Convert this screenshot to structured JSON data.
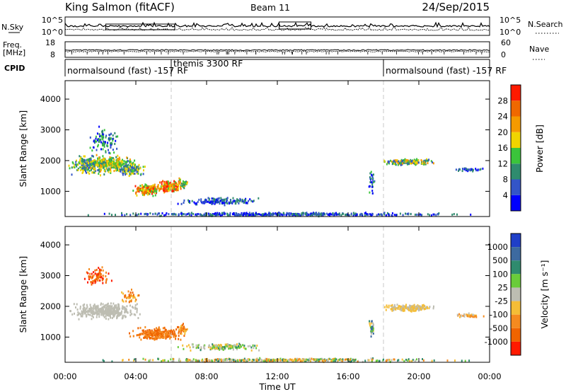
{
  "header": {
    "station": "King Salmon (fitACF)",
    "beam": "Beam 11",
    "date": "24/Sep/2015"
  },
  "chart_data": [
    {
      "type": "line",
      "panel": "noise",
      "left_label": "N.Sky",
      "right_label": "N.Search",
      "left_ticks": [
        "10^5",
        "10^0"
      ],
      "right_ticks": [
        "10^5",
        "10^0"
      ],
      "ylog": true
    },
    {
      "type": "line",
      "panel": "frequency",
      "left_label_lines": [
        "Freq.",
        "[MHz]"
      ],
      "right_label": "Nave",
      "left_ticks": [
        "18",
        "8"
      ],
      "right_ticks": [
        "60",
        "0"
      ]
    },
    {
      "type": "table",
      "panel": "cpid",
      "label": "CPID",
      "segments": [
        {
          "text": "normalsound (fast) -157 RF",
          "start_h": 0,
          "end_h": 6
        },
        {
          "text": "themis 3300 RF",
          "start_h": 6,
          "end_h": 18
        },
        {
          "text": "normalsound (fast) -157 RF",
          "start_h": 18,
          "end_h": 24
        }
      ]
    },
    {
      "type": "heatmap",
      "panel": "power",
      "ylabel": "Slant Range [km]",
      "yticks": [
        1000,
        2000,
        3000,
        4000
      ],
      "ylim": [
        180,
        4600
      ],
      "colorbar_label": "Power [dB]",
      "colorbar_ticks": [
        4,
        8,
        12,
        16,
        20,
        24,
        28
      ],
      "colors": [
        "#0000ff",
        "#3355c8",
        "#2f8b6e",
        "#3bc43b",
        "#f0d400",
        "#f59a00",
        "#ef6800",
        "#ff1a00"
      ],
      "blobs": [
        {
          "t": 1.4,
          "r": 1850,
          "dt": 1.5,
          "dr": 380,
          "n": 260,
          "lvl": [
            1,
            4
          ]
        },
        {
          "t": 2.6,
          "r": 1900,
          "dt": 1.4,
          "dr": 300,
          "n": 240,
          "lvl": [
            2,
            5
          ]
        },
        {
          "t": 3.6,
          "r": 1750,
          "dt": 1.0,
          "dr": 300,
          "n": 160,
          "lvl": [
            1,
            4
          ]
        },
        {
          "t": 2.2,
          "r": 2650,
          "dt": 1.0,
          "dr": 500,
          "n": 110,
          "lvl": [
            0,
            3
          ]
        },
        {
          "t": 4.6,
          "r": 1050,
          "dt": 1.0,
          "dr": 220,
          "n": 170,
          "lvl": [
            3,
            7
          ]
        },
        {
          "t": 5.8,
          "r": 1150,
          "dt": 0.9,
          "dr": 240,
          "n": 150,
          "lvl": [
            3,
            7
          ]
        },
        {
          "t": 6.6,
          "r": 1250,
          "dt": 0.4,
          "dr": 200,
          "n": 40,
          "lvl": [
            2,
            5
          ]
        },
        {
          "t": 8.8,
          "r": 680,
          "dt": 3.0,
          "dr": 140,
          "n": 160,
          "lvl": [
            0,
            2
          ]
        },
        {
          "t": 12.0,
          "r": 250,
          "dt": 12.0,
          "dr": 70,
          "n": 450,
          "lvl": [
            0,
            2
          ]
        },
        {
          "t": 19.4,
          "r": 1950,
          "dt": 1.8,
          "dr": 130,
          "n": 180,
          "lvl": [
            1,
            5
          ]
        },
        {
          "t": 22.8,
          "r": 1700,
          "dt": 1.0,
          "dr": 80,
          "n": 40,
          "lvl": [
            0,
            2
          ]
        },
        {
          "t": 17.3,
          "r": 1300,
          "dt": 0.2,
          "dr": 450,
          "n": 30,
          "lvl": [
            0,
            3
          ]
        }
      ]
    },
    {
      "type": "heatmap",
      "panel": "velocity",
      "ylabel": "Slant Range [km]",
      "yticks": [
        1000,
        2000,
        3000,
        4000
      ],
      "ylim": [
        180,
        4600
      ],
      "xticks": [
        "00:00",
        "04:00",
        "08:00",
        "12:00",
        "16:00",
        "20:00",
        "00:00"
      ],
      "xlim_hours": [
        0,
        24
      ],
      "xlabel": "Time UT",
      "colorbar_label": "Velocity [m s⁻¹]",
      "colorbar_ticks": [
        "1000",
        "500",
        "100",
        "25",
        "-25",
        "-100",
        "-500",
        "-1000"
      ],
      "colors": [
        "#1f3fc8",
        "#3d6aa0",
        "#2f8b6e",
        "#6acc3a",
        "#bdbdb2",
        "#f5bd36",
        "#f58a1f",
        "#f06400",
        "#ff1a00"
      ],
      "blobs": [
        {
          "t": 2.2,
          "r": 1850,
          "dt": 2.3,
          "dr": 300,
          "n": 420,
          "lvl": [
            4,
            4
          ]
        },
        {
          "t": 1.8,
          "r": 2950,
          "dt": 1.0,
          "dr": 380,
          "n": 90,
          "lvl": [
            6,
            8
          ]
        },
        {
          "t": 3.6,
          "r": 2300,
          "dt": 0.7,
          "dr": 300,
          "n": 40,
          "lvl": [
            5,
            7
          ]
        },
        {
          "t": 5.2,
          "r": 1100,
          "dt": 1.7,
          "dr": 260,
          "n": 260,
          "lvl": [
            6,
            7
          ]
        },
        {
          "t": 6.6,
          "r": 1250,
          "dt": 0.4,
          "dr": 200,
          "n": 40,
          "lvl": [
            5,
            7
          ]
        },
        {
          "t": 8.8,
          "r": 680,
          "dt": 3.0,
          "dr": 140,
          "n": 160,
          "lvl": [
            2,
            5
          ]
        },
        {
          "t": 12.0,
          "r": 250,
          "dt": 12.0,
          "dr": 70,
          "n": 420,
          "lvl": [
            2,
            6
          ]
        },
        {
          "t": 19.4,
          "r": 1950,
          "dt": 1.8,
          "dr": 130,
          "n": 180,
          "lvl": [
            4,
            5
          ]
        },
        {
          "t": 22.8,
          "r": 1700,
          "dt": 1.0,
          "dr": 80,
          "n": 40,
          "lvl": [
            4,
            6
          ]
        },
        {
          "t": 17.3,
          "r": 1300,
          "dt": 0.2,
          "dr": 450,
          "n": 30,
          "lvl": [
            1,
            5
          ]
        }
      ]
    }
  ]
}
